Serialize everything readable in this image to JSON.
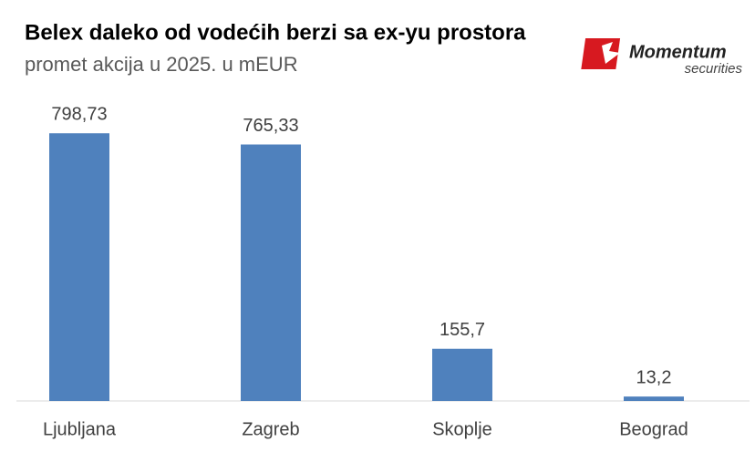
{
  "chart_data": {
    "type": "bar",
    "title": "Belex daleko od vodećih berzi sa ex-yu prostora",
    "subtitle": "promet akcija u 2025. u mEUR",
    "categories": [
      "Ljubljana",
      "Zagreb",
      "Skoplje",
      "Beograd"
    ],
    "values": [
      798.73,
      765.33,
      155.7,
      13.2
    ],
    "value_labels": [
      "798,73",
      "765,33",
      "155,7",
      "13,2"
    ],
    "color": "#4f81bd",
    "ylim": [
      0,
      900
    ]
  },
  "logo": {
    "name": "Momentum",
    "tagline": "securities"
  }
}
